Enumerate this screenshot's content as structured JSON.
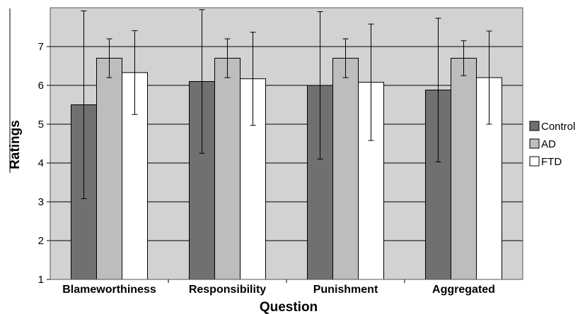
{
  "chart_data": {
    "type": "bar",
    "xlabel": "Question",
    "ylabel": "Ratings",
    "ylim": [
      1,
      8
    ],
    "yticks": [
      1,
      2,
      3,
      4,
      5,
      6,
      7
    ],
    "grid": true,
    "legend_position": "right",
    "categories": [
      "Blameworthiness",
      "Responsibility",
      "Punishment",
      "Aggregated"
    ],
    "series": [
      {
        "name": "Control",
        "color": "#707070",
        "values": [
          5.5,
          6.1,
          6.0,
          5.88
        ],
        "error": [
          2.42,
          1.85,
          1.9,
          1.85
        ]
      },
      {
        "name": "AD",
        "color": "#bdbdbd",
        "values": [
          6.7,
          6.7,
          6.7,
          6.7
        ],
        "error": [
          0.5,
          0.5,
          0.5,
          0.45
        ]
      },
      {
        "name": "FTD",
        "color": "#ffffff",
        "values": [
          6.33,
          6.17,
          6.08,
          6.2
        ],
        "error": [
          1.08,
          1.2,
          1.5,
          1.2
        ]
      }
    ],
    "plot_background": "#d2d2d2"
  }
}
